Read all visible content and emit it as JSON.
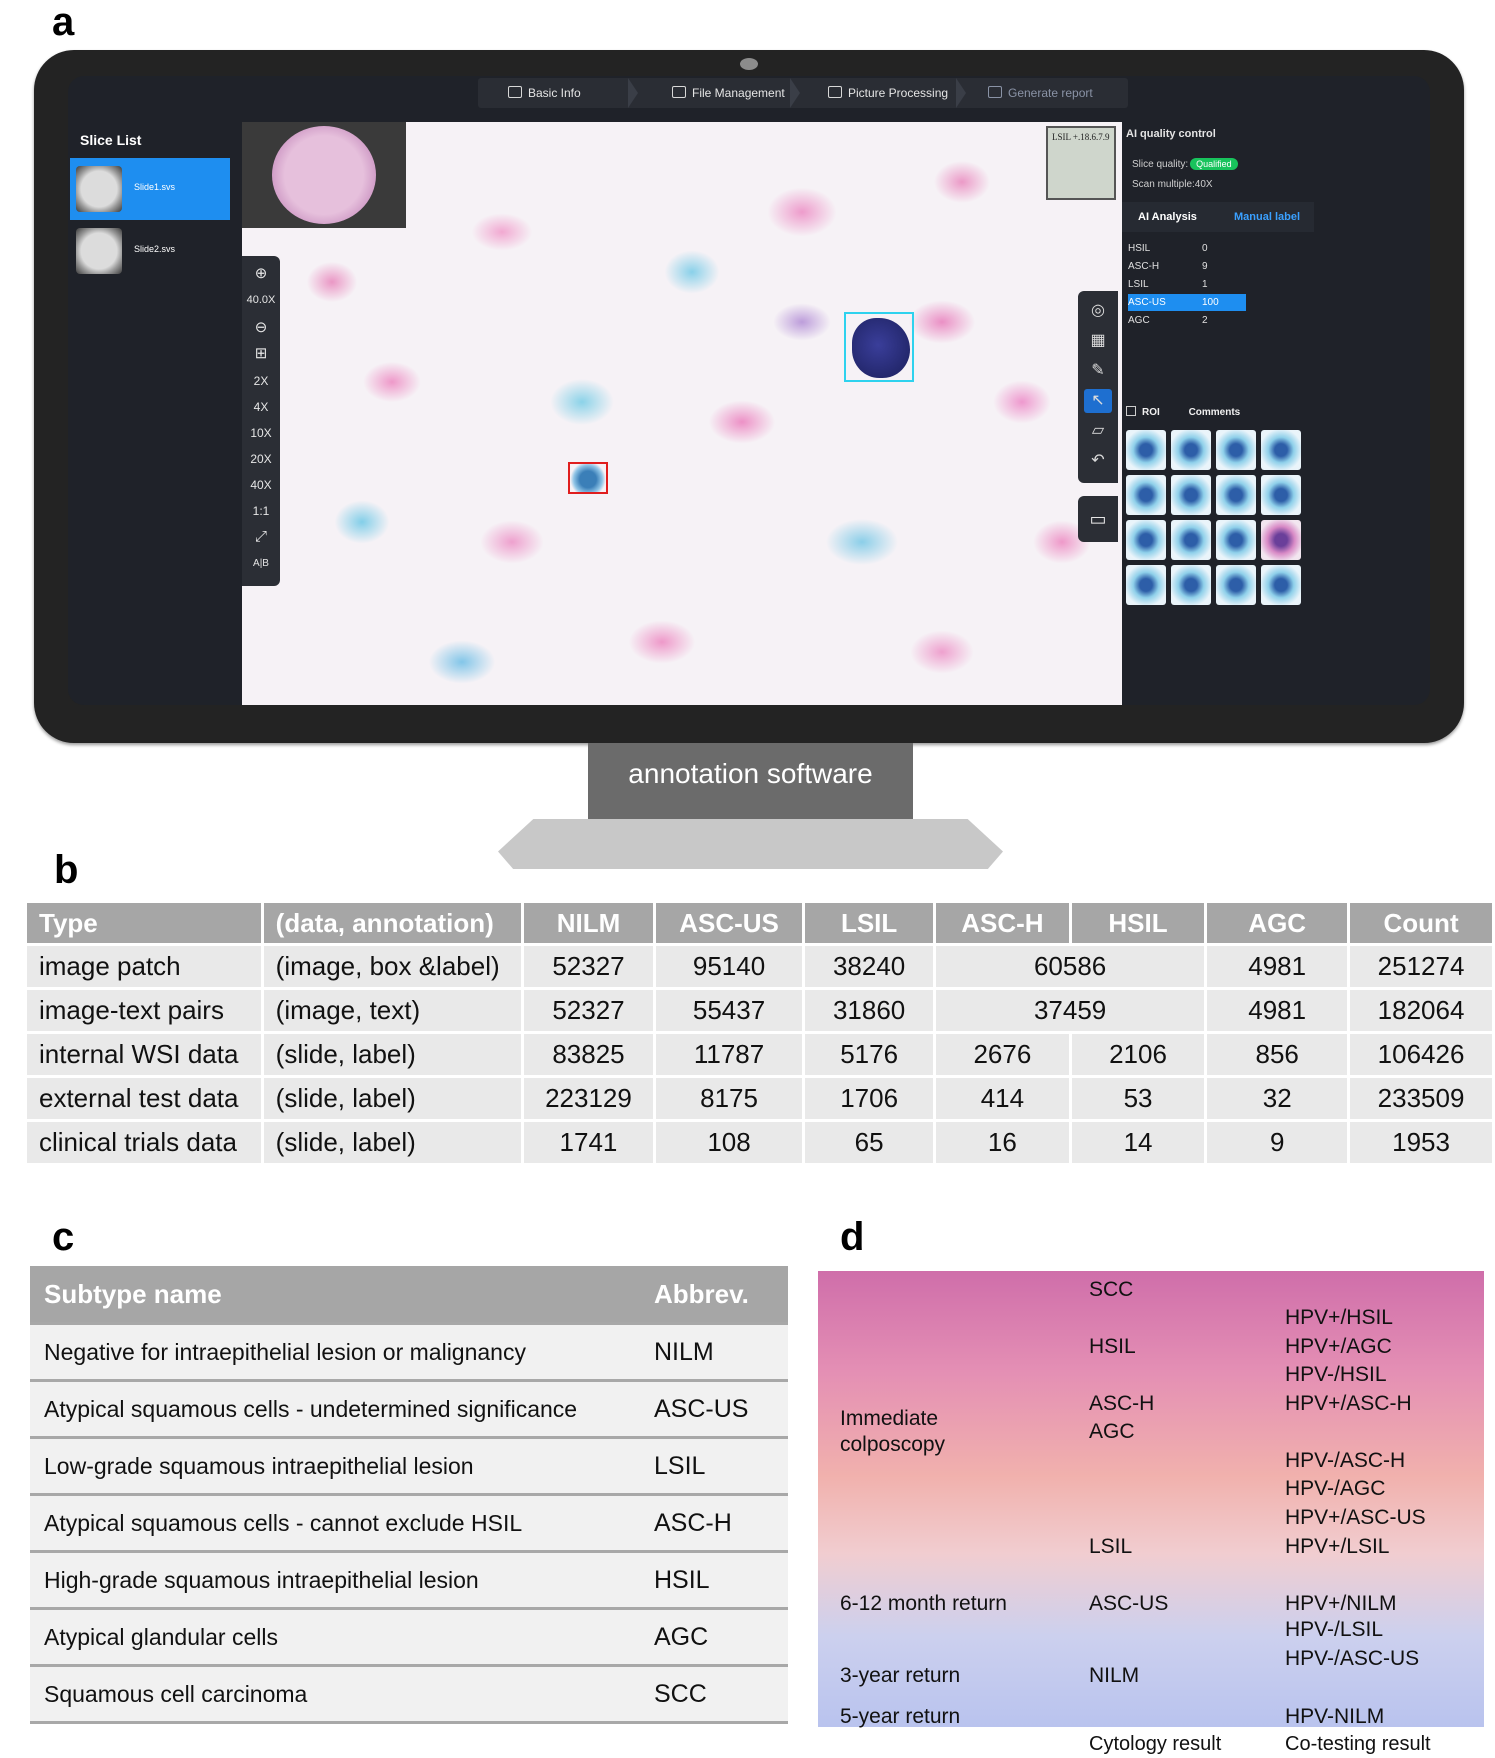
{
  "panel_letters": {
    "a": "a",
    "b": "b",
    "c": "c",
    "d": "d"
  },
  "monitor": {
    "caption": "annotation software",
    "steps": [
      {
        "label": "Basic Info",
        "icon": "home-icon"
      },
      {
        "label": "File Management",
        "icon": "file-icon"
      },
      {
        "label": "Picture Processing",
        "icon": "image-icon"
      },
      {
        "label": "Generate report",
        "icon": "report-icon"
      }
    ],
    "slice_list": {
      "title": "Slice List",
      "items": [
        {
          "name": "Slide1.svs",
          "selected": true
        },
        {
          "name": "Slide2.svs",
          "selected": false
        }
      ]
    },
    "zoom": {
      "zoom_in": "⊕",
      "level": "40.0X",
      "zoom_out": "⊖",
      "fit": "⊞",
      "presets": [
        "2X",
        "4X",
        "10X",
        "20X",
        "40X",
        "1:1"
      ],
      "fullscreen": "⤢",
      "compare": "A|B"
    },
    "slide_label_text": "LSIL +.18.6.7.9",
    "right_panel": {
      "title": "AI quality control",
      "slice_quality_label": "Slice quality:",
      "slice_quality_value": "Qualified",
      "scan_multiple": "Scan multiple:40X",
      "tabs": [
        "AI Analysis",
        "Manual label"
      ],
      "counts": [
        {
          "label": "HSIL",
          "value": "0",
          "selected": false
        },
        {
          "label": "ASC-H",
          "value": "9",
          "selected": false
        },
        {
          "label": "LSIL",
          "value": "1",
          "selected": false
        },
        {
          "label": "ASC-US",
          "value": "100",
          "selected": true
        },
        {
          "label": "AGC",
          "value": "2",
          "selected": false
        }
      ],
      "roi_label": "ROI",
      "comments_label": "Comments"
    },
    "colors": {
      "accent": "#1e8ef0",
      "qualified": "#18c35c",
      "box_cyan": "#2ed2ee",
      "box_red": "#e01e1e"
    }
  },
  "table_b": {
    "headers": [
      "Type",
      "(data, annotation)",
      "NILM",
      "ASC-US",
      "LSIL",
      "ASC-H",
      "HSIL",
      "AGC",
      "Count"
    ],
    "rows": [
      {
        "type": "image patch",
        "annotation": "(image, box &label)",
        "nilm": "52327",
        "ascus": "95140",
        "lsil": "38240",
        "asch_hsil": "60586",
        "agc": "4981",
        "count": "251274"
      },
      {
        "type": "image-text pairs",
        "annotation": "(image, text)",
        "nilm": "52327",
        "ascus": "55437",
        "lsil": "31860",
        "asch_hsil": "37459",
        "agc": "4981",
        "count": "182064"
      },
      {
        "type": "internal WSI data",
        "annotation": "(slide, label)",
        "nilm": "83825",
        "ascus": "11787",
        "lsil": "5176",
        "asch": "2676",
        "hsil": "2106",
        "agc": "856",
        "count": "106426"
      },
      {
        "type": "external test data",
        "annotation": "(slide, label)",
        "nilm": "223129",
        "ascus": "8175",
        "lsil": "1706",
        "asch": "414",
        "hsil": "53",
        "agc": "32",
        "count": "233509"
      },
      {
        "type": "clinical trials data",
        "annotation": "(slide, label)",
        "nilm": "1741",
        "ascus": "108",
        "lsil": "65",
        "asch": "16",
        "hsil": "14",
        "agc": "9",
        "count": "1953"
      }
    ]
  },
  "table_c": {
    "headers": [
      "Subtype name",
      "Abbrev."
    ],
    "rows": [
      {
        "name": "Negative for intraepithelial lesion or malignancy",
        "abbrev": "NILM"
      },
      {
        "name": "Atypical squamous cells - undetermined significance",
        "abbrev": "ASC-US"
      },
      {
        "name": "Low-grade squamous intraepithelial lesion",
        "abbrev": "LSIL"
      },
      {
        "name": "Atypical squamous cells - cannot exclude HSIL",
        "abbrev": "ASC-H"
      },
      {
        "name": "High-grade squamous intraepithelial lesion",
        "abbrev": "HSIL"
      },
      {
        "name": "Atypical glandular cells",
        "abbrev": "AGC"
      },
      {
        "name": "Squamous cell carcinoma",
        "abbrev": "SCC"
      }
    ]
  },
  "panel_d": {
    "actions": {
      "immediate_1": "Immediate",
      "immediate_2": "colposcopy",
      "month": "6-12 month return",
      "three": "3-year return",
      "five": "5-year return"
    },
    "cytology": [
      "SCC",
      "HSIL",
      "ASC-H",
      "AGC",
      "LSIL",
      "ASC-US",
      "NILM"
    ],
    "cotesting": [
      "HPV+/HSIL",
      "HPV+/AGC",
      "HPV-/HSIL",
      "HPV+/ASC-H",
      "HPV-/ASC-H",
      "HPV-/AGC",
      "HPV+/ASC-US",
      "HPV+/LSIL",
      "HPV+/NILM",
      "HPV-/LSIL",
      "HPV-/ASC-US",
      "HPV-NILM"
    ],
    "footer": {
      "cytology": "Cytology result",
      "cotesting": "Co-testing result"
    }
  }
}
